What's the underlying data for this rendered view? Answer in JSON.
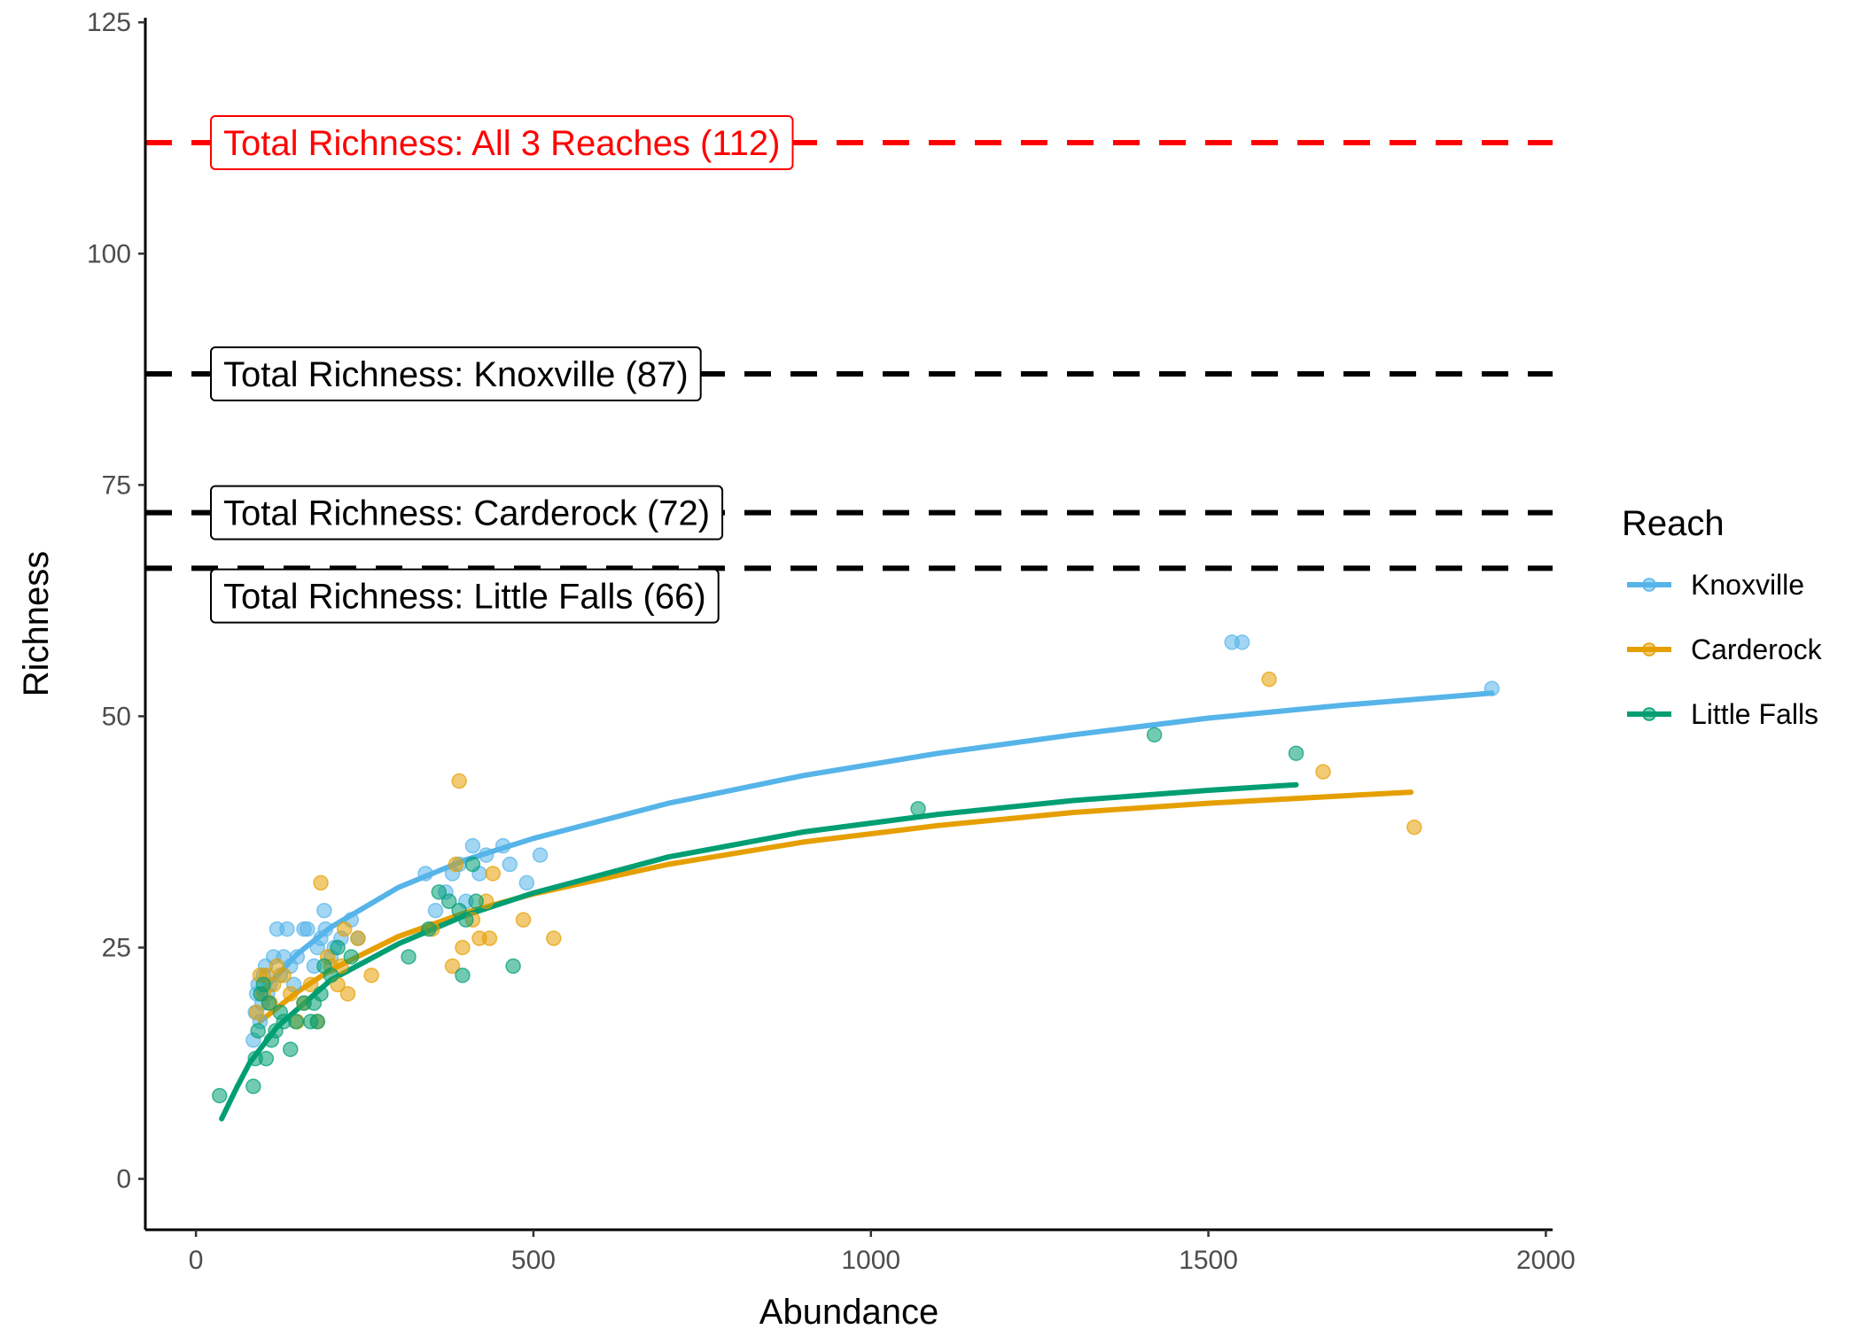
{
  "chart_data": {
    "type": "scatter",
    "title": "",
    "xlabel": "Abundance",
    "ylabel": "Richness",
    "xlim": [
      -75,
      2010
    ],
    "ylim": [
      -5.5,
      125.5
    ],
    "xticks": [
      0,
      500,
      1000,
      1500,
      2000
    ],
    "yticks": [
      0,
      25,
      50,
      75,
      100,
      125
    ],
    "grid": false,
    "legend": {
      "title": "Reach",
      "position": "right",
      "entries": [
        "Knoxville",
        "Carderock",
        "Little Falls"
      ]
    },
    "reference_lines": [
      {
        "label": "Total Richness: All 3 Reaches (112)",
        "y": 112,
        "color": "#ff0000",
        "label_y": 112
      },
      {
        "label": "Total Richness: Knoxville (87)",
        "y": 87,
        "color": "#000000",
        "label_y": 87
      },
      {
        "label": "Total Richness: Carderock (72)",
        "y": 72,
        "color": "#000000",
        "label_y": 72
      },
      {
        "label": "Total Richness: Little Falls (66)",
        "y": 66,
        "color": "#000000",
        "label_y": 63
      }
    ],
    "series": [
      {
        "name": "Knoxville",
        "color": "#56b4e9",
        "points": [
          [
            85,
            15
          ],
          [
            88,
            18
          ],
          [
            90,
            20
          ],
          [
            92,
            21
          ],
          [
            95,
            17
          ],
          [
            98,
            19
          ],
          [
            100,
            22
          ],
          [
            103,
            23
          ],
          [
            106,
            20
          ],
          [
            110,
            21
          ],
          [
            115,
            24
          ],
          [
            120,
            27
          ],
          [
            125,
            22
          ],
          [
            130,
            24
          ],
          [
            135,
            27
          ],
          [
            140,
            23
          ],
          [
            145,
            21
          ],
          [
            150,
            24
          ],
          [
            160,
            27
          ],
          [
            165,
            27
          ],
          [
            175,
            23
          ],
          [
            180,
            25
          ],
          [
            185,
            26
          ],
          [
            190,
            29
          ],
          [
            192,
            27
          ],
          [
            200,
            24
          ],
          [
            205,
            25
          ],
          [
            215,
            26
          ],
          [
            230,
            28
          ],
          [
            240,
            26
          ],
          [
            340,
            33
          ],
          [
            355,
            29
          ],
          [
            370,
            31
          ],
          [
            380,
            33
          ],
          [
            390,
            34
          ],
          [
            400,
            30
          ],
          [
            410,
            36
          ],
          [
            420,
            33
          ],
          [
            430,
            35
          ],
          [
            455,
            36
          ],
          [
            465,
            34
          ],
          [
            490,
            32
          ],
          [
            510,
            35
          ],
          [
            1535,
            58
          ],
          [
            1550,
            58
          ],
          [
            1920,
            53
          ]
        ],
        "fit": [
          [
            95,
            20
          ],
          [
            150,
            24.3
          ],
          [
            200,
            27.2
          ],
          [
            300,
            31.5
          ],
          [
            400,
            34.5
          ],
          [
            500,
            36.8
          ],
          [
            700,
            40.6
          ],
          [
            900,
            43.6
          ],
          [
            1100,
            46
          ],
          [
            1300,
            48
          ],
          [
            1500,
            49.8
          ],
          [
            1700,
            51.2
          ],
          [
            1920,
            52.5
          ]
        ]
      },
      {
        "name": "Carderock",
        "color": "#e69f00",
        "points": [
          [
            90,
            18
          ],
          [
            95,
            22
          ],
          [
            100,
            20
          ],
          [
            105,
            22
          ],
          [
            110,
            19
          ],
          [
            115,
            21
          ],
          [
            120,
            23
          ],
          [
            130,
            22
          ],
          [
            140,
            20
          ],
          [
            150,
            17
          ],
          [
            160,
            19
          ],
          [
            170,
            21
          ],
          [
            180,
            17
          ],
          [
            185,
            32
          ],
          [
            195,
            24
          ],
          [
            200,
            23
          ],
          [
            210,
            21
          ],
          [
            215,
            23
          ],
          [
            220,
            27
          ],
          [
            225,
            20
          ],
          [
            240,
            26
          ],
          [
            260,
            22
          ],
          [
            350,
            27
          ],
          [
            380,
            23
          ],
          [
            385,
            34
          ],
          [
            390,
            43
          ],
          [
            395,
            25
          ],
          [
            410,
            28
          ],
          [
            420,
            26
          ],
          [
            430,
            30
          ],
          [
            435,
            26
          ],
          [
            440,
            33
          ],
          [
            485,
            28
          ],
          [
            530,
            26
          ],
          [
            1590,
            54
          ],
          [
            1670,
            44
          ],
          [
            1805,
            38
          ]
        ],
        "fit": [
          [
            95,
            17
          ],
          [
            150,
            20.2
          ],
          [
            200,
            22.6
          ],
          [
            300,
            26.2
          ],
          [
            400,
            28.8
          ],
          [
            500,
            30.8
          ],
          [
            700,
            34
          ],
          [
            900,
            36.4
          ],
          [
            1100,
            38.2
          ],
          [
            1300,
            39.6
          ],
          [
            1500,
            40.6
          ],
          [
            1700,
            41.4
          ],
          [
            1800,
            41.8
          ]
        ]
      },
      {
        "name": "Little Falls",
        "color": "#009e73",
        "points": [
          [
            35,
            9
          ],
          [
            85,
            10
          ],
          [
            88,
            13
          ],
          [
            92,
            16
          ],
          [
            96,
            20
          ],
          [
            100,
            21
          ],
          [
            104,
            13
          ],
          [
            108,
            19
          ],
          [
            112,
            15
          ],
          [
            118,
            16
          ],
          [
            125,
            18
          ],
          [
            130,
            17
          ],
          [
            140,
            14
          ],
          [
            148,
            17
          ],
          [
            160,
            19
          ],
          [
            170,
            17
          ],
          [
            175,
            19
          ],
          [
            180,
            17
          ],
          [
            185,
            20
          ],
          [
            190,
            23
          ],
          [
            200,
            22
          ],
          [
            210,
            25
          ],
          [
            230,
            24
          ],
          [
            315,
            24
          ],
          [
            345,
            27
          ],
          [
            360,
            31
          ],
          [
            375,
            30
          ],
          [
            390,
            29
          ],
          [
            395,
            22
          ],
          [
            400,
            28
          ],
          [
            410,
            34
          ],
          [
            415,
            30
          ],
          [
            470,
            23
          ],
          [
            1070,
            40
          ],
          [
            1420,
            48
          ],
          [
            1630,
            46
          ]
        ],
        "fit": [
          [
            38,
            6.5
          ],
          [
            60,
            9.8
          ],
          [
            80,
            12.6
          ],
          [
            120,
            16.4
          ],
          [
            200,
            21.5
          ],
          [
            300,
            25.4
          ],
          [
            400,
            28.5
          ],
          [
            500,
            30.9
          ],
          [
            700,
            34.8
          ],
          [
            900,
            37.5
          ],
          [
            1100,
            39.4
          ],
          [
            1300,
            40.9
          ],
          [
            1500,
            42
          ],
          [
            1630,
            42.6
          ]
        ]
      }
    ]
  }
}
